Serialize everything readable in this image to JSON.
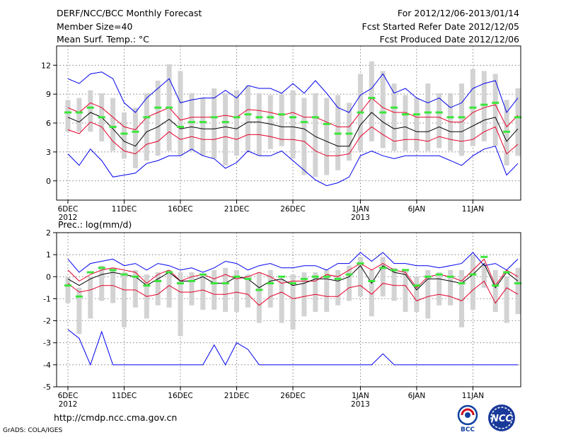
{
  "header": {
    "title": "DERF/NCC/BCC Monthly Forecast",
    "period": "For 2012/12/06-2013/01/14",
    "member_size": "Member Size=40",
    "started": "Fcst Started Refer Date 2012/12/05",
    "variable": "Mean Surf. Temp.: °C",
    "produced": "Fcst Produced Date 2012/12/06"
  },
  "footer": {
    "url": "http://cmdp.ncc.cma.gov.cn",
    "grads": "GrADS: COLA/IGES",
    "logo_bcc": "BCC",
    "logo_ncc": "NCC"
  },
  "colors": {
    "bar": "#d3d3d3",
    "median": "#39e639",
    "mean": "#000000",
    "std": "#e4002b",
    "extreme": "#0000ee",
    "grid": "#555555"
  },
  "chart_data": [
    {
      "type": "ensemble-boxplot",
      "id": "temp",
      "title": "Mean Surf. Temp.: °C",
      "ylim": [
        -2,
        14
      ],
      "yticks": [
        0,
        3,
        6,
        9,
        12
      ],
      "grid": true,
      "x_days": 40,
      "x_ticks": [
        {
          "day": 0,
          "label": "6DEC",
          "sub": "2012"
        },
        {
          "day": 5,
          "label": "11DEC"
        },
        {
          "day": 10,
          "label": "16DEC"
        },
        {
          "day": 15,
          "label": "21DEC"
        },
        {
          "day": 20,
          "label": "26DEC"
        },
        {
          "day": 26,
          "label": "1JAN",
          "sub": "2013"
        },
        {
          "day": 31,
          "label": "6JAN"
        },
        {
          "day": 36,
          "label": "11JAN"
        }
      ],
      "max": [
        10.6,
        10.1,
        11.1,
        11.3,
        10.6,
        8.1,
        7.1,
        8.6,
        9.6,
        10.6,
        8.1,
        8.4,
        8.6,
        8.6,
        9.4,
        8.6,
        9.9,
        9.6,
        9.6,
        9.1,
        10.1,
        9.1,
        10.4,
        9.1,
        7.6,
        7.1,
        8.9,
        9.6,
        11.1,
        9.1,
        9.6,
        8.6,
        8.1,
        8.6,
        7.6,
        8.1,
        9.6,
        10.1,
        10.4,
        7.1,
        8.6
      ],
      "plus_std": [
        7.6,
        7.1,
        8.1,
        7.6,
        6.6,
        5.6,
        5.3,
        6.6,
        7.1,
        7.6,
        6.3,
        6.6,
        6.6,
        6.6,
        6.8,
        6.6,
        7.4,
        7.3,
        7.1,
        6.8,
        7.1,
        6.6,
        6.6,
        6.1,
        5.6,
        5.6,
        7.1,
        8.6,
        7.6,
        7.1,
        7.1,
        6.6,
        6.6,
        6.6,
        6.1,
        6.1,
        7.1,
        7.6,
        7.9,
        5.6,
        6.8
      ],
      "mean": [
        6.6,
        6.1,
        7.1,
        6.6,
        5.4,
        4.1,
        3.6,
        5.1,
        5.6,
        6.4,
        5.4,
        5.6,
        5.4,
        5.4,
        5.6,
        5.4,
        6.1,
        6.1,
        5.9,
        5.6,
        5.6,
        5.4,
        4.6,
        4.1,
        3.6,
        3.6,
        5.8,
        7.1,
        6.1,
        5.4,
        5.6,
        5.1,
        5.1,
        5.6,
        5.1,
        5.1,
        5.7,
        6.3,
        6.6,
        4.1,
        5.4
      ],
      "minus_std": [
        5.3,
        4.9,
        6.1,
        5.6,
        4.1,
        3.1,
        2.8,
        3.8,
        4.1,
        5.1,
        4.3,
        4.6,
        4.3,
        4.3,
        4.6,
        4.3,
        4.8,
        4.8,
        4.6,
        4.3,
        4.3,
        4.1,
        3.1,
        2.6,
        2.6,
        2.8,
        4.6,
        5.6,
        4.8,
        4.1,
        4.3,
        4.3,
        4.1,
        4.6,
        4.3,
        4.1,
        4.3,
        5.1,
        5.6,
        2.8,
        3.8
      ],
      "min": [
        2.8,
        1.6,
        3.3,
        2.1,
        0.4,
        0.6,
        0.8,
        1.8,
        2.1,
        2.6,
        2.6,
        3.3,
        2.6,
        2.3,
        1.3,
        1.9,
        3.1,
        2.6,
        2.6,
        3.1,
        2.1,
        1.1,
        0.1,
        -0.5,
        -0.2,
        0.4,
        2.6,
        3.1,
        2.6,
        2.3,
        2.6,
        2.6,
        2.6,
        2.6,
        2.1,
        1.6,
        2.6,
        3.3,
        3.6,
        0.6,
        1.8
      ],
      "bar_top": [
        8.4,
        8.6,
        9.4,
        9.1,
        8.6,
        7.1,
        7.6,
        9.1,
        10.4,
        12.1,
        11.4,
        9.1,
        8.6,
        9.6,
        9.1,
        9.4,
        9.9,
        9.1,
        8.9,
        9.1,
        9.4,
        8.6,
        9.1,
        8.6,
        8.9,
        8.1,
        11.1,
        12.4,
        11.4,
        10.1,
        8.9,
        8.6,
        10.1,
        9.1,
        9.1,
        10.1,
        11.6,
        11.4,
        11.1,
        8.4,
        9.6
      ],
      "bar_bottom": [
        5.1,
        5.1,
        5.1,
        4.1,
        3.1,
        2.3,
        1.3,
        2.1,
        2.6,
        3.1,
        2.6,
        3.1,
        2.6,
        2.3,
        1.6,
        2.6,
        3.1,
        2.6,
        3.3,
        3.6,
        2.3,
        0.6,
        0.4,
        0.6,
        1.1,
        2.1,
        3.1,
        4.1,
        3.4,
        3.1,
        3.1,
        3.1,
        3.1,
        3.4,
        3.1,
        2.6,
        3.6,
        4.1,
        3.6,
        1.6,
        2.6
      ],
      "median": [
        7.1,
        7.1,
        7.6,
        6.6,
        5.6,
        4.9,
        5.1,
        6.6,
        7.6,
        7.6,
        5.6,
        6.1,
        6.1,
        6.6,
        6.1,
        6.6,
        6.9,
        6.6,
        6.6,
        6.9,
        6.6,
        6.1,
        6.6,
        5.9,
        4.9,
        4.9,
        7.1,
        8.6,
        7.1,
        7.6,
        6.9,
        6.9,
        7.1,
        7.1,
        6.6,
        6.6,
        7.6,
        7.9,
        8.1,
        5.1,
        6.6
      ]
    },
    {
      "type": "ensemble-boxplot",
      "id": "prec",
      "title": "Prec.: log(mm/d)",
      "ylim": [
        -5,
        2
      ],
      "yticks": [
        2,
        1,
        0,
        -1,
        -2,
        -3,
        -4,
        -5
      ],
      "grid": true,
      "x_days": 40,
      "x_ticks": [
        {
          "day": 0,
          "label": "6DEC",
          "sub": "2012"
        },
        {
          "day": 5,
          "label": "11DEC"
        },
        {
          "day": 10,
          "label": "16DEC"
        },
        {
          "day": 15,
          "label": "21DEC"
        },
        {
          "day": 20,
          "label": "26DEC"
        },
        {
          "day": 26,
          "label": "1JAN",
          "sub": "2013"
        },
        {
          "day": 31,
          "label": "6JAN"
        },
        {
          "day": 36,
          "label": "11JAN"
        }
      ],
      "max": [
        0.8,
        0.2,
        0.6,
        0.7,
        0.8,
        0.5,
        0.6,
        0.3,
        0.6,
        0.5,
        0.3,
        0.4,
        0.2,
        0.4,
        0.7,
        0.6,
        0.3,
        0.5,
        0.6,
        0.4,
        0.4,
        0.5,
        0.5,
        0.3,
        0.6,
        0.6,
        1.1,
        0.7,
        1.1,
        0.6,
        0.6,
        0.5,
        0.5,
        0.4,
        0.5,
        0.6,
        1.1,
        0.5,
        0.6,
        0.3,
        0.8
      ],
      "plus_std": [
        0.3,
        -0.2,
        0.1,
        0.3,
        0.4,
        0.3,
        0.2,
        -0.3,
        0.1,
        0.3,
        -0.2,
        0.0,
        0.1,
        -0.1,
        0.1,
        -0.1,
        0.0,
        0.2,
        0.0,
        -0.3,
        -0.2,
        -0.2,
        -0.2,
        0.1,
        0.0,
        0.3,
        0.6,
        0.3,
        0.6,
        0.3,
        0.2,
        -0.5,
        0.0,
        0.1,
        0.0,
        -0.2,
        0.3,
        0.8,
        -0.4,
        0.3,
        0.0
      ],
      "mean": [
        -0.1,
        -0.4,
        -0.1,
        0.1,
        0.2,
        0.1,
        0.0,
        -0.4,
        -0.1,
        0.2,
        -0.2,
        -0.2,
        0.0,
        -0.3,
        -0.3,
        0.0,
        -0.1,
        -0.5,
        -0.2,
        -0.1,
        -0.4,
        -0.3,
        -0.1,
        -0.1,
        -0.2,
        0.0,
        0.5,
        -0.3,
        0.5,
        0.2,
        0.1,
        -0.6,
        -0.1,
        -0.1,
        -0.2,
        -0.3,
        0.1,
        0.6,
        -0.5,
        0.2,
        -0.2
      ],
      "minus_std": [
        -0.3,
        -0.7,
        -0.6,
        -0.4,
        -0.4,
        -0.6,
        -0.6,
        -0.9,
        -0.8,
        -0.4,
        -0.7,
        -0.7,
        -0.6,
        -0.8,
        -0.8,
        -0.7,
        -0.8,
        -1.3,
        -0.9,
        -0.7,
        -1.0,
        -0.9,
        -0.8,
        -0.9,
        -0.9,
        -0.5,
        -0.4,
        -0.8,
        -0.3,
        -0.4,
        -0.4,
        -1.1,
        -0.9,
        -0.8,
        -0.9,
        -1.1,
        -0.6,
        -0.2,
        -1.2,
        -0.5,
        -0.8
      ],
      "min": [
        -2.4,
        -2.8,
        -4.0,
        -2.5,
        -4.0,
        -4.0,
        -4.0,
        -4.0,
        -4.0,
        -4.0,
        -4.0,
        -4.0,
        -4.0,
        -3.1,
        -4.0,
        -3.0,
        -3.3,
        -4.0,
        -4.0,
        -4.0,
        -4.0,
        -4.0,
        -4.0,
        -4.0,
        -4.0,
        -4.0,
        -4.0,
        -4.0,
        -3.5,
        -4.0,
        -4.0,
        -4.0,
        -4.0,
        -4.0,
        -4.0,
        -4.0,
        -4.0,
        -4.0,
        -4.0,
        -4.0,
        -4.0
      ],
      "bar_top": [
        0.0,
        -0.5,
        0.0,
        0.5,
        0.4,
        0.2,
        0.3,
        0.1,
        0.2,
        0.3,
        0.2,
        0.2,
        0.1,
        0.3,
        0.4,
        0.3,
        0.1,
        0.2,
        0.3,
        -0.1,
        0.1,
        0.2,
        0.2,
        0.3,
        0.3,
        0.5,
        0.9,
        0.3,
        0.9,
        0.4,
        0.3,
        0.0,
        0.3,
        0.2,
        0.3,
        0.3,
        1.0,
        0.5,
        0.3,
        0.0,
        0.4
      ],
      "bar_bottom": [
        -1.2,
        -2.6,
        -1.9,
        -1.1,
        -1.2,
        -2.3,
        -1.4,
        -1.9,
        -1.3,
        -1.4,
        -2.7,
        -1.3,
        -1.5,
        -1.5,
        -1.6,
        -1.6,
        -1.4,
        -2.1,
        -1.4,
        -2.1,
        -2.4,
        -1.8,
        -1.6,
        -1.6,
        -1.3,
        -1.1,
        -0.9,
        -1.8,
        -0.9,
        -1.1,
        -1.6,
        -1.6,
        -1.9,
        -1.3,
        -1.3,
        -2.3,
        -1.5,
        -0.5,
        -1.6,
        -2.1,
        -1.7
      ],
      "median": [
        -0.4,
        -0.9,
        0.2,
        0.4,
        0.3,
        0.1,
        0.0,
        -0.4,
        -0.2,
        0.2,
        -0.3,
        -0.2,
        0.1,
        -0.3,
        -0.3,
        0.0,
        -0.1,
        -0.6,
        -0.3,
        0.0,
        -0.3,
        -0.1,
        0.0,
        0.0,
        -0.1,
        0.1,
        0.6,
        -0.2,
        0.4,
        0.3,
        0.3,
        -0.4,
        0.0,
        0.1,
        0.0,
        -0.3,
        0.1,
        0.9,
        -0.4,
        0.2,
        -0.3
      ]
    }
  ]
}
